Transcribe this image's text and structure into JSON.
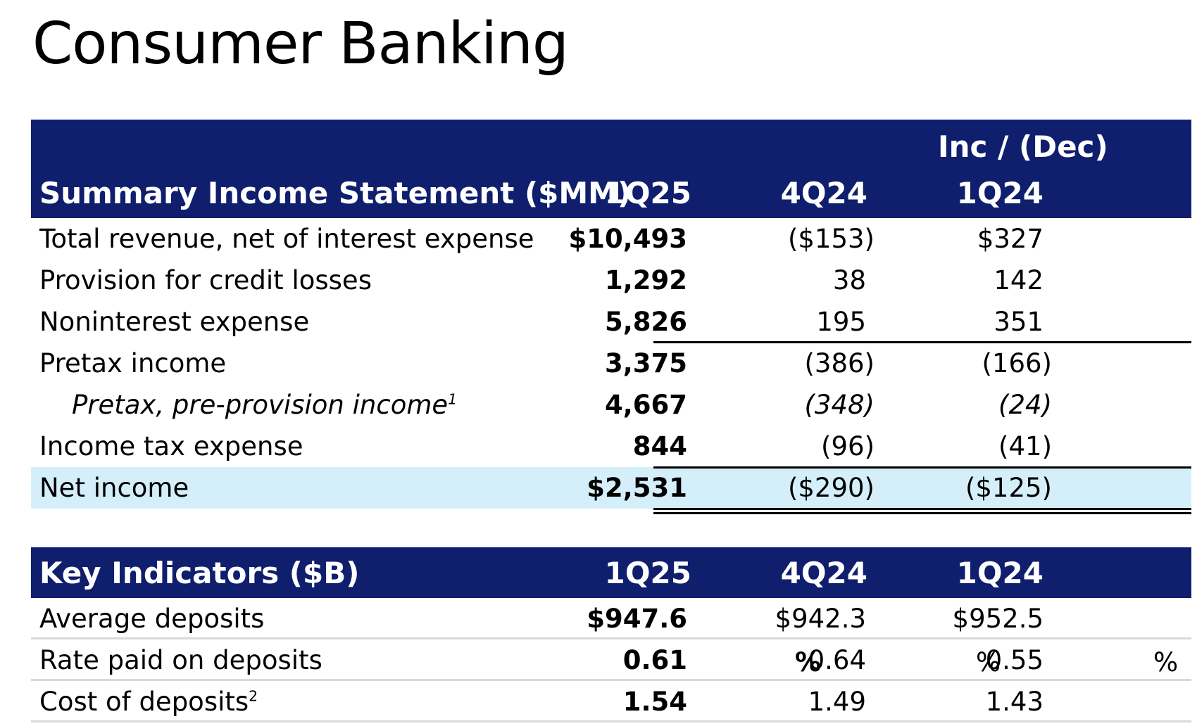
{
  "page": {
    "title": "Consumer Banking"
  },
  "income_statement": {
    "header": {
      "group_label": "Inc / (Dec)",
      "title": "Summary Income Statement ($MM)",
      "col1": "1Q25",
      "col2": "4Q24",
      "col3": "1Q24"
    },
    "rows": [
      {
        "label": "Total revenue, net of interest expense",
        "v1": "$10,493",
        "v2": "($153)",
        "v3": "$327"
      },
      {
        "label": "Provision for credit losses",
        "v1": "1,292",
        "v2": "38",
        "v3": "142"
      },
      {
        "label": "Noninterest expense",
        "v1": "5,826",
        "v2": "195",
        "v3": "351"
      },
      {
        "label": "Pretax income",
        "v1": "3,375",
        "v2": "(386)",
        "v3": "(166)"
      },
      {
        "label": "Pretax, pre-provision income",
        "footnote": "1",
        "v1": "4,667",
        "v2": "(348)",
        "v3": "(24)"
      },
      {
        "label": "Income tax expense",
        "v1": "844",
        "v2": "(96)",
        "v3": "(41)"
      },
      {
        "label": "Net income",
        "v1": "$2,531",
        "v2": "($290)",
        "v3": "($125)"
      }
    ]
  },
  "key_indicators": {
    "header": {
      "title": "Key Indicators ($B)",
      "col1": "1Q25",
      "col2": "4Q24",
      "col3": "1Q24"
    },
    "rows": [
      {
        "label": "Average deposits",
        "v1": "$947.6",
        "v2": "$942.3",
        "v3": "$952.5"
      },
      {
        "label": "Rate paid on deposits",
        "v1": "0.61",
        "v2": "0.64",
        "v3": "0.55",
        "unit": "%"
      },
      {
        "label": "Cost of deposits",
        "footnote": "2",
        "v1": "1.54",
        "v2": "1.49",
        "v3": "1.43"
      }
    ]
  },
  "colors": {
    "header_bg": "#0f1f6e",
    "highlight_bg": "#d4effa",
    "kpi_divider": "#d9d9d9"
  }
}
